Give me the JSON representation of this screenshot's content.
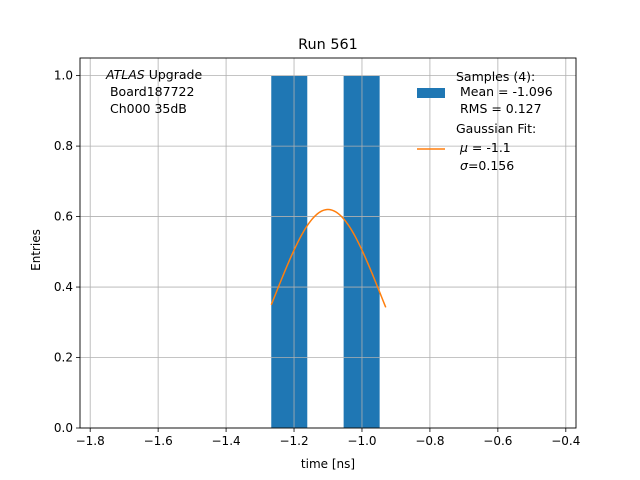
{
  "chart_data": {
    "type": "bar",
    "title": "Run 561",
    "xlabel": "time [ns]",
    "ylabel": "Entries",
    "xlim": [
      -1.83,
      -0.37
    ],
    "ylim": [
      0.0,
      1.05
    ],
    "xticks": [
      -1.8,
      -1.6,
      -1.4,
      -1.2,
      -1.0,
      -0.8,
      -0.6,
      -0.4
    ],
    "yticks": [
      0.0,
      0.2,
      0.4,
      0.6,
      0.8,
      1.0
    ],
    "grid": true,
    "bars": [
      {
        "x0": -1.267,
        "x1": -1.161,
        "value": 1.0
      },
      {
        "x0": -1.161,
        "x1": -1.054,
        "value": 0.0
      },
      {
        "x0": -1.054,
        "x1": -0.948,
        "value": 1.0
      }
    ],
    "gaussian_fit": {
      "mu": -1.1,
      "sigma": 0.156,
      "amplitude": 0.62,
      "x_range": [
        -1.267,
        -0.93
      ]
    },
    "annotation": {
      "line1_italic": "ATLAS",
      "line1_rest": " Upgrade",
      "line2": " Board187722",
      "line3": " Ch000 35dB"
    },
    "legend": {
      "placement": "top-right",
      "samples": {
        "line1": "Samples (4):",
        "line2": " Mean = -1.096",
        "line3": " RMS = 0.127"
      },
      "fit": {
        "line1": "Gaussian Fit:",
        "mu_sym": "μ",
        "mu_text": " = -1.1",
        "sigma_sym": "σ",
        "sigma_text": "=0.156"
      }
    },
    "colors": {
      "bar": "#1f77b4",
      "fit": "#ff7f0e",
      "grid": "#b0b0b0"
    }
  }
}
